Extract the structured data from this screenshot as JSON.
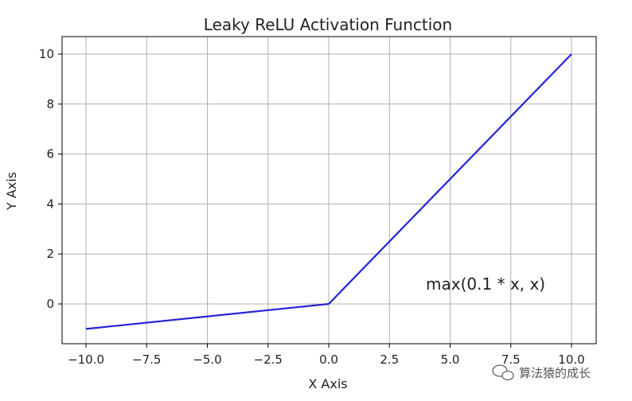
{
  "chart_data": {
    "type": "line",
    "title": "Leaky ReLU Activation Function",
    "xlabel": "X Axis",
    "ylabel": "Y Axis",
    "xlim": [
      -11,
      11
    ],
    "ylim": [
      -1.5,
      10.7
    ],
    "grid": true,
    "x_ticks": [
      -10,
      -7.5,
      -5,
      -2.5,
      0,
      2.5,
      5,
      7.5,
      10
    ],
    "x_tick_labels": [
      "−10.0",
      "−7.5",
      "−5.0",
      "−2.5",
      "0.0",
      "2.5",
      "5.0",
      "7.5",
      "10.0"
    ],
    "y_ticks": [
      0,
      2,
      4,
      6,
      8,
      10
    ],
    "y_tick_labels": [
      "0",
      "2",
      "4",
      "6",
      "8",
      "10"
    ],
    "series": [
      {
        "x": [
          -10,
          0,
          10
        ],
        "y": [
          -1,
          0,
          10
        ],
        "color": "#2323d6"
      }
    ],
    "annotation": {
      "text": "max(0.1 * x, x)",
      "x": 4,
      "y": 0.8
    }
  },
  "watermark": {
    "text": "算法猿的成长"
  }
}
